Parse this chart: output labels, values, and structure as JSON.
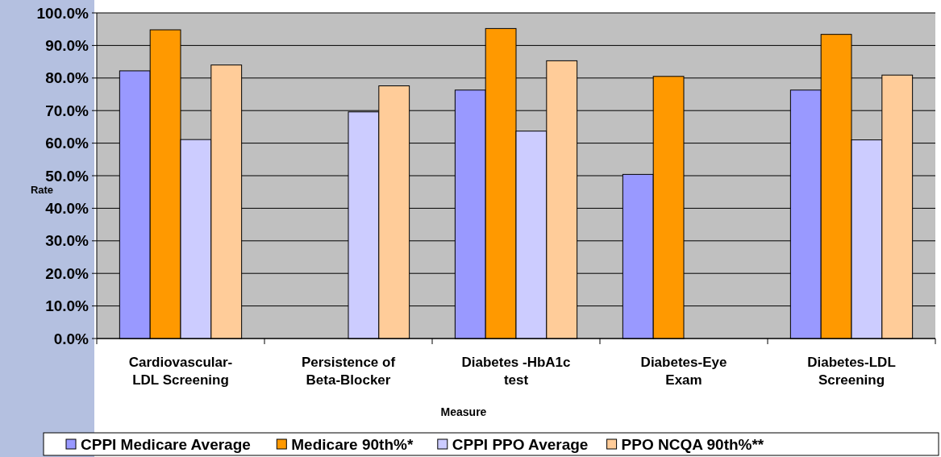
{
  "chart_data": {
    "type": "bar",
    "xlabel": "Measure",
    "ylabel": "Rate",
    "categories": [
      "Cardiovascular-\nLDL Screening",
      "Persistence of\nBeta-Blocker",
      "Diabetes -HbA1c\ntest",
      "Diabetes-Eye\nExam",
      "Diabetes-LDL\nScreening"
    ],
    "series": [
      {
        "name": "CPPI Medicare Average",
        "color": "#9999ff",
        "values": [
          82.2,
          null,
          76.3,
          50.4,
          76.3
        ]
      },
      {
        "name": "Medicare 90th%*",
        "color": "#ff9900",
        "values": [
          94.8,
          null,
          95.2,
          80.5,
          93.4
        ]
      },
      {
        "name": "CPPI PPO Average",
        "color": "#ccccff",
        "values": [
          61.1,
          69.6,
          63.7,
          null,
          61.0
        ]
      },
      {
        "name": "PPO NCQA 90th%**",
        "color": "#ffcc99",
        "values": [
          84.0,
          77.6,
          85.3,
          null,
          80.9
        ]
      }
    ],
    "ylim": [
      0,
      100
    ],
    "yticks": [
      {
        "value": 0,
        "label": "0.0%"
      },
      {
        "value": 10,
        "label": "10.0%"
      },
      {
        "value": 20,
        "label": "20.0%"
      },
      {
        "value": 30,
        "label": "30.0%"
      },
      {
        "value": 40,
        "label": "40.0%"
      },
      {
        "value": 50,
        "label": "50.0%"
      },
      {
        "value": 60,
        "label": "60.0%"
      },
      {
        "value": 70,
        "label": "70.0%"
      },
      {
        "value": 80,
        "label": "80.0%"
      },
      {
        "value": 90,
        "label": "90.0%"
      },
      {
        "value": 100,
        "label": "100.0%"
      }
    ],
    "grid": "y",
    "legend": "bottom"
  }
}
